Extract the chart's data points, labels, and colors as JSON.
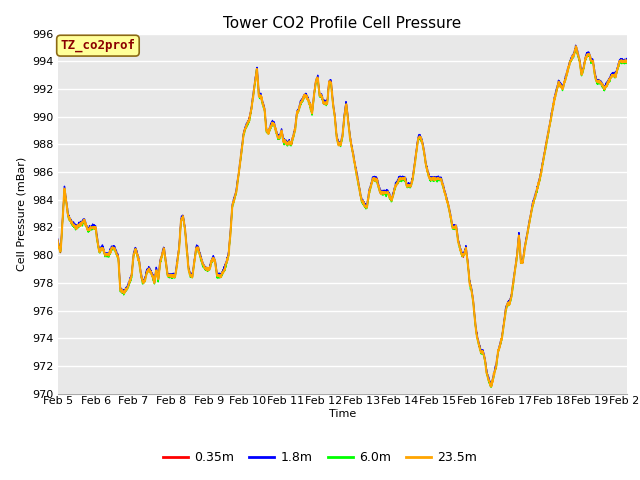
{
  "title": "Tower CO2 Profile Cell Pressure",
  "xlabel": "Time",
  "ylabel": "Cell Pressure (mBar)",
  "ylim": [
    970,
    996
  ],
  "yticks": [
    970,
    972,
    974,
    976,
    978,
    980,
    982,
    984,
    986,
    988,
    990,
    992,
    994,
    996
  ],
  "series_labels": [
    "0.35m",
    "1.8m",
    "6.0m",
    "23.5m"
  ],
  "series_colors": [
    "red",
    "blue",
    "lime",
    "orange"
  ],
  "annotation_label": "TZ_co2prof",
  "annotation_color": "#8B0000",
  "annotation_bg": "#FFFF99",
  "annotation_border": "#8B6914",
  "background_color": "#e8e8e8",
  "grid_color": "white",
  "title_fontsize": 11,
  "axis_fontsize": 8,
  "legend_fontsize": 9,
  "x_start": 5.0,
  "x_end": 20.0,
  "xtick_labels": [
    "Feb 5",
    "Feb 6",
    "Feb 7",
    "Feb 8",
    "Feb 9",
    "Feb 10",
    "Feb 11",
    "Feb 12",
    "Feb 13",
    "Feb 14",
    "Feb 15",
    "Feb 16",
    "Feb 17",
    "Feb 18",
    "Feb 19",
    "Feb 20"
  ],
  "xtick_positions": [
    5,
    6,
    7,
    8,
    9,
    10,
    11,
    12,
    13,
    14,
    15,
    16,
    17,
    18,
    19,
    20
  ],
  "n_points": 2000,
  "waypoints": [
    [
      5.0,
      981.0
    ],
    [
      5.08,
      980.2
    ],
    [
      5.18,
      984.8
    ],
    [
      5.28,
      982.8
    ],
    [
      5.4,
      982.2
    ],
    [
      5.5,
      982.0
    ],
    [
      5.6,
      982.2
    ],
    [
      5.7,
      982.5
    ],
    [
      5.8,
      981.8
    ],
    [
      5.9,
      982.0
    ],
    [
      6.0,
      982.0
    ],
    [
      6.05,
      981.0
    ],
    [
      6.1,
      980.2
    ],
    [
      6.18,
      980.6
    ],
    [
      6.25,
      980.0
    ],
    [
      6.35,
      980.0
    ],
    [
      6.42,
      980.5
    ],
    [
      6.5,
      980.5
    ],
    [
      6.6,
      979.8
    ],
    [
      6.65,
      977.5
    ],
    [
      6.75,
      977.3
    ],
    [
      6.85,
      977.7
    ],
    [
      6.95,
      978.5
    ],
    [
      7.0,
      980.0
    ],
    [
      7.05,
      980.5
    ],
    [
      7.1,
      980.0
    ],
    [
      7.15,
      979.5
    ],
    [
      7.2,
      978.5
    ],
    [
      7.25,
      978.0
    ],
    [
      7.3,
      978.2
    ],
    [
      7.35,
      978.8
    ],
    [
      7.4,
      979.0
    ],
    [
      7.45,
      978.8
    ],
    [
      7.5,
      978.5
    ],
    [
      7.55,
      978.0
    ],
    [
      7.6,
      979.0
    ],
    [
      7.65,
      978.2
    ],
    [
      7.7,
      979.5
    ],
    [
      7.75,
      980.0
    ],
    [
      7.8,
      980.5
    ],
    [
      7.85,
      979.5
    ],
    [
      7.9,
      978.5
    ],
    [
      8.0,
      978.5
    ],
    [
      8.05,
      978.5
    ],
    [
      8.1,
      978.5
    ],
    [
      8.15,
      979.5
    ],
    [
      8.2,
      980.5
    ],
    [
      8.25,
      982.5
    ],
    [
      8.3,
      982.8
    ],
    [
      8.35,
      982.0
    ],
    [
      8.4,
      980.5
    ],
    [
      8.45,
      979.0
    ],
    [
      8.5,
      978.5
    ],
    [
      8.55,
      978.5
    ],
    [
      8.6,
      979.5
    ],
    [
      8.65,
      980.5
    ],
    [
      8.7,
      980.5
    ],
    [
      8.75,
      980.0
    ],
    [
      8.8,
      979.5
    ],
    [
      8.85,
      979.2
    ],
    [
      8.9,
      979.0
    ],
    [
      8.95,
      979.0
    ],
    [
      9.0,
      979.0
    ],
    [
      9.05,
      979.5
    ],
    [
      9.1,
      979.8
    ],
    [
      9.15,
      979.5
    ],
    [
      9.2,
      978.5
    ],
    [
      9.3,
      978.5
    ],
    [
      9.4,
      979.0
    ],
    [
      9.45,
      979.5
    ],
    [
      9.5,
      980.0
    ],
    [
      9.55,
      981.5
    ],
    [
      9.6,
      983.5
    ],
    [
      9.7,
      984.5
    ],
    [
      9.8,
      986.5
    ],
    [
      9.9,
      988.8
    ],
    [
      9.95,
      989.2
    ],
    [
      10.0,
      989.5
    ],
    [
      10.05,
      989.8
    ],
    [
      10.1,
      990.5
    ],
    [
      10.15,
      991.5
    ],
    [
      10.2,
      992.5
    ],
    [
      10.25,
      993.5
    ],
    [
      10.3,
      991.5
    ],
    [
      10.35,
      991.5
    ],
    [
      10.4,
      991.0
    ],
    [
      10.45,
      990.5
    ],
    [
      10.5,
      989.0
    ],
    [
      10.55,
      988.8
    ],
    [
      10.6,
      989.2
    ],
    [
      10.65,
      989.5
    ],
    [
      10.7,
      989.5
    ],
    [
      10.75,
      989.0
    ],
    [
      10.8,
      988.5
    ],
    [
      10.85,
      988.5
    ],
    [
      10.9,
      989.0
    ],
    [
      10.95,
      988.2
    ],
    [
      11.0,
      988.2
    ],
    [
      11.05,
      988.0
    ],
    [
      11.1,
      988.2
    ],
    [
      11.15,
      988.0
    ],
    [
      11.2,
      988.5
    ],
    [
      11.25,
      989.0
    ],
    [
      11.3,
      990.2
    ],
    [
      11.35,
      990.5
    ],
    [
      11.4,
      991.0
    ],
    [
      11.45,
      991.2
    ],
    [
      11.5,
      991.5
    ],
    [
      11.55,
      991.5
    ],
    [
      11.6,
      991.2
    ],
    [
      11.65,
      990.8
    ],
    [
      11.7,
      990.2
    ],
    [
      11.75,
      991.5
    ],
    [
      11.8,
      992.5
    ],
    [
      11.85,
      992.8
    ],
    [
      11.9,
      991.5
    ],
    [
      11.95,
      991.5
    ],
    [
      12.0,
      991.0
    ],
    [
      12.05,
      991.0
    ],
    [
      12.1,
      991.0
    ],
    [
      12.15,
      992.5
    ],
    [
      12.2,
      992.5
    ],
    [
      12.25,
      991.0
    ],
    [
      12.3,
      990.0
    ],
    [
      12.35,
      988.5
    ],
    [
      12.4,
      988.0
    ],
    [
      12.45,
      988.0
    ],
    [
      12.5,
      988.5
    ],
    [
      12.55,
      990.0
    ],
    [
      12.6,
      991.0
    ],
    [
      12.7,
      988.5
    ],
    [
      12.8,
      987.0
    ],
    [
      12.9,
      985.5
    ],
    [
      13.0,
      984.0
    ],
    [
      13.1,
      983.5
    ],
    [
      13.15,
      983.5
    ],
    [
      13.2,
      984.5
    ],
    [
      13.25,
      985.0
    ],
    [
      13.3,
      985.5
    ],
    [
      13.4,
      985.5
    ],
    [
      13.45,
      985.0
    ],
    [
      13.5,
      984.5
    ],
    [
      13.6,
      984.5
    ],
    [
      13.7,
      984.5
    ],
    [
      13.75,
      984.2
    ],
    [
      13.8,
      984.0
    ],
    [
      13.85,
      984.5
    ],
    [
      13.9,
      985.0
    ],
    [
      14.0,
      985.5
    ],
    [
      14.05,
      985.5
    ],
    [
      14.1,
      985.5
    ],
    [
      14.15,
      985.5
    ],
    [
      14.2,
      985.0
    ],
    [
      14.3,
      985.0
    ],
    [
      14.35,
      985.5
    ],
    [
      14.4,
      986.5
    ],
    [
      14.5,
      988.5
    ],
    [
      14.55,
      988.5
    ],
    [
      14.6,
      988.2
    ],
    [
      14.65,
      987.5
    ],
    [
      14.7,
      986.5
    ],
    [
      14.8,
      985.5
    ],
    [
      14.9,
      985.5
    ],
    [
      15.0,
      985.5
    ],
    [
      15.05,
      985.5
    ],
    [
      15.1,
      985.5
    ],
    [
      15.15,
      985.0
    ],
    [
      15.2,
      984.5
    ],
    [
      15.25,
      984.0
    ],
    [
      15.3,
      983.5
    ],
    [
      15.4,
      982.0
    ],
    [
      15.5,
      982.0
    ],
    [
      15.55,
      981.0
    ],
    [
      15.6,
      980.5
    ],
    [
      15.65,
      980.0
    ],
    [
      15.7,
      980.0
    ],
    [
      15.75,
      980.5
    ],
    [
      15.8,
      979.5
    ],
    [
      15.85,
      978.0
    ],
    [
      15.9,
      977.5
    ],
    [
      15.95,
      976.5
    ],
    [
      16.0,
      975.0
    ],
    [
      16.05,
      974.0
    ],
    [
      16.1,
      973.5
    ],
    [
      16.15,
      973.0
    ],
    [
      16.2,
      973.0
    ],
    [
      16.25,
      972.5
    ],
    [
      16.3,
      971.5
    ],
    [
      16.35,
      971.0
    ],
    [
      16.42,
      970.5
    ],
    [
      16.5,
      971.5
    ],
    [
      16.55,
      972.0
    ],
    [
      16.6,
      973.0
    ],
    [
      16.65,
      973.5
    ],
    [
      16.7,
      974.0
    ],
    [
      16.75,
      975.0
    ],
    [
      16.8,
      976.0
    ],
    [
      16.85,
      976.5
    ],
    [
      16.9,
      976.5
    ],
    [
      16.95,
      977.0
    ],
    [
      17.0,
      978.0
    ],
    [
      17.05,
      979.0
    ],
    [
      17.1,
      980.0
    ],
    [
      17.15,
      981.5
    ],
    [
      17.2,
      979.5
    ],
    [
      17.25,
      979.5
    ],
    [
      17.3,
      980.5
    ],
    [
      17.4,
      982.0
    ],
    [
      17.5,
      983.5
    ],
    [
      17.6,
      984.5
    ],
    [
      17.7,
      985.5
    ],
    [
      17.8,
      987.0
    ],
    [
      17.9,
      988.5
    ],
    [
      18.0,
      990.0
    ],
    [
      18.1,
      991.5
    ],
    [
      18.2,
      992.5
    ],
    [
      18.3,
      992.0
    ],
    [
      18.4,
      993.0
    ],
    [
      18.5,
      994.0
    ],
    [
      18.6,
      994.5
    ],
    [
      18.65,
      995.0
    ],
    [
      18.7,
      994.5
    ],
    [
      18.75,
      994.0
    ],
    [
      18.8,
      993.0
    ],
    [
      18.85,
      993.5
    ],
    [
      18.9,
      994.2
    ],
    [
      18.95,
      994.5
    ],
    [
      19.0,
      994.5
    ],
    [
      19.05,
      994.0
    ],
    [
      19.1,
      994.0
    ],
    [
      19.15,
      993.0
    ],
    [
      19.2,
      992.5
    ],
    [
      19.3,
      992.5
    ],
    [
      19.4,
      992.0
    ],
    [
      19.5,
      992.5
    ],
    [
      19.6,
      993.0
    ],
    [
      19.7,
      993.0
    ],
    [
      19.8,
      994.0
    ],
    [
      19.9,
      994.0
    ],
    [
      20.0,
      994.0
    ]
  ]
}
